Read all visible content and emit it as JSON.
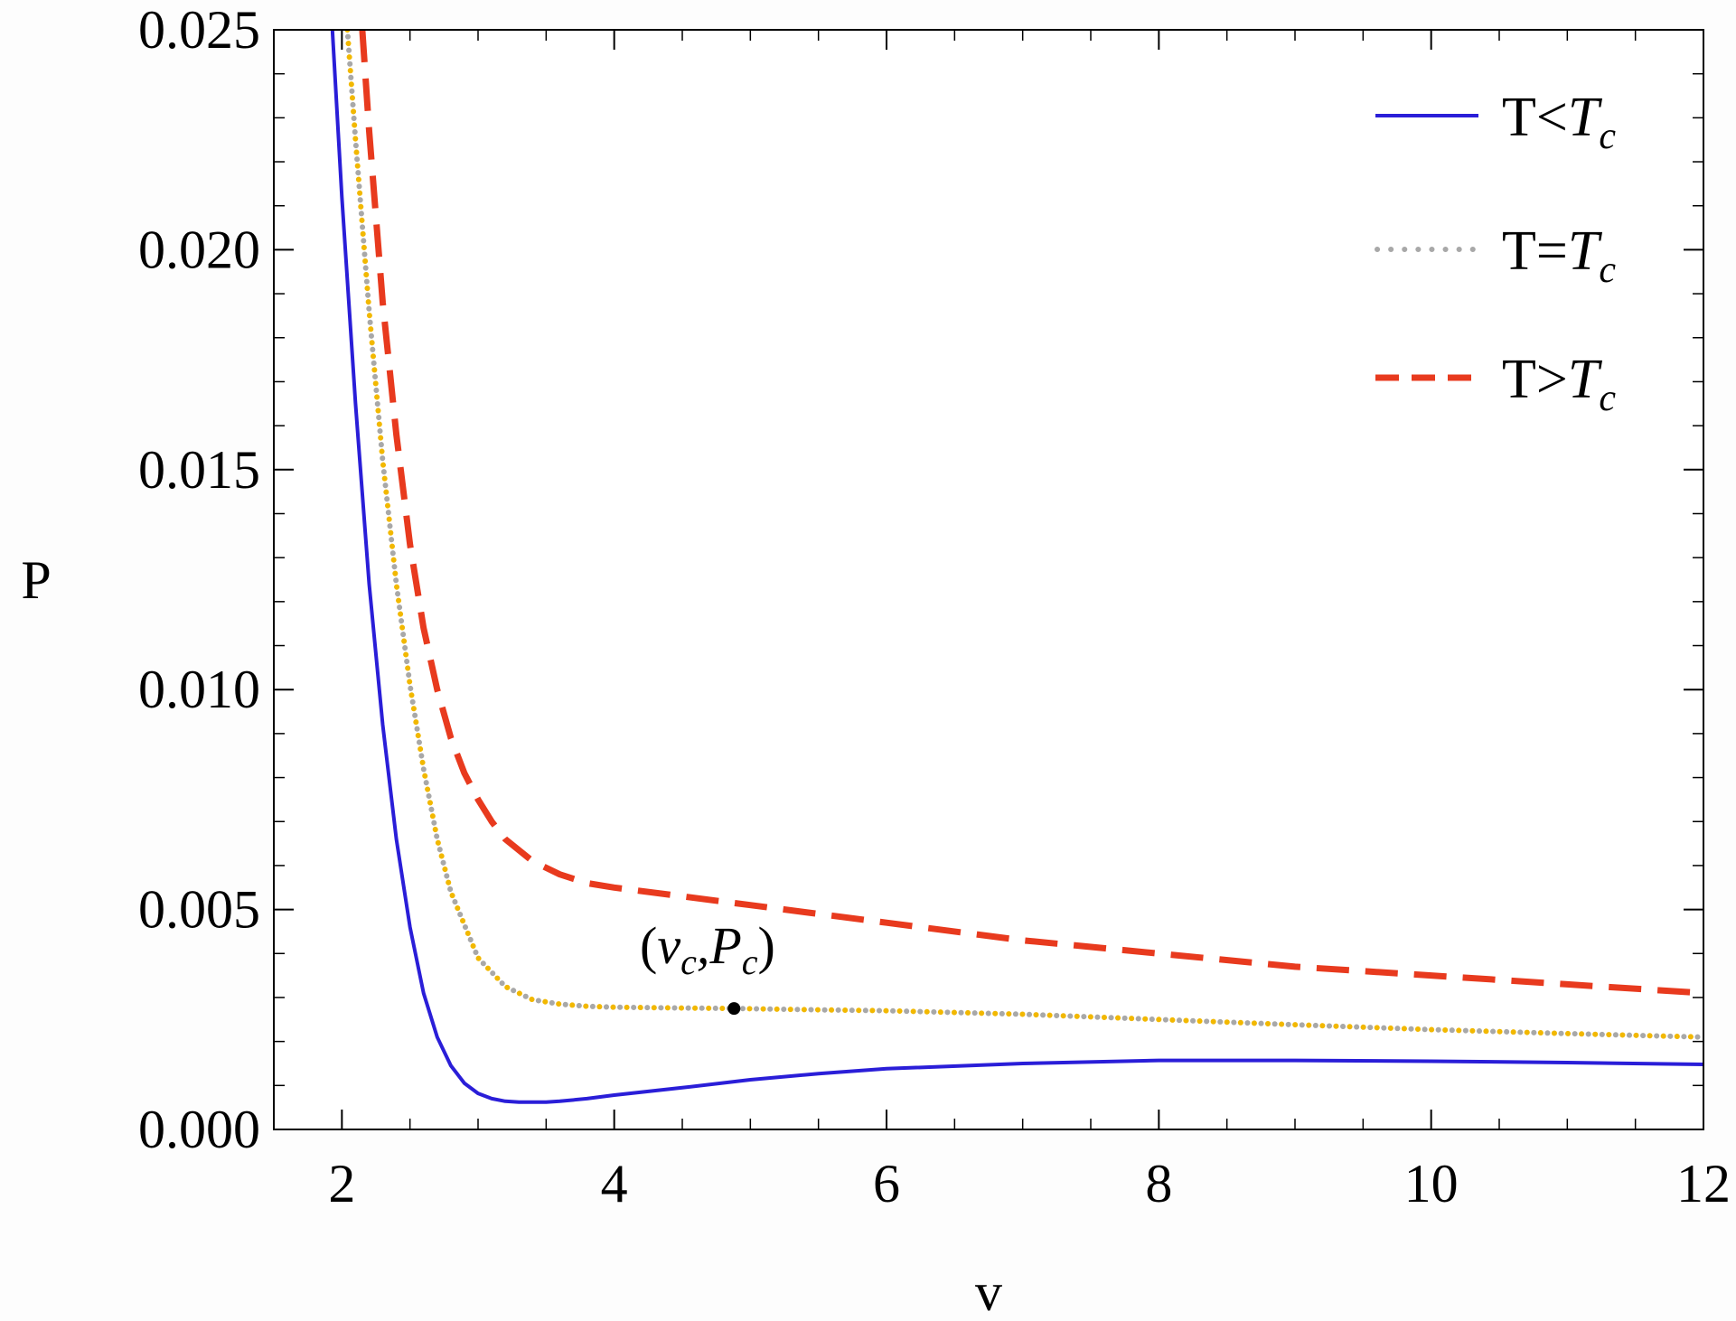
{
  "chart_data": {
    "type": "line",
    "title": "",
    "xlabel": "v",
    "ylabel": "P",
    "xlim": [
      1.5,
      12
    ],
    "ylim": [
      0,
      0.025
    ],
    "x_ticks": [
      2,
      4,
      6,
      8,
      10,
      12
    ],
    "x_tick_labels": [
      "2",
      "4",
      "6",
      "8",
      "10",
      "12"
    ],
    "y_ticks": [
      0,
      0.005,
      0.01,
      0.015,
      0.02,
      0.025
    ],
    "y_tick_labels": [
      "0.000",
      "0.005",
      "0.010",
      "0.015",
      "0.020",
      "0.025"
    ],
    "grid": false,
    "legend_position": "top-right",
    "annotation": {
      "label_base": "(v",
      "label_sub1": "c",
      "label_mid": ",P",
      "label_sub2": "c",
      "label_end": ")",
      "point": [
        4.88,
        0.00275
      ]
    },
    "series": [
      {
        "name": "T<Tc",
        "legend_base": "T<",
        "legend_italic": "T",
        "legend_sub": "c",
        "color": "#2a1ed8",
        "style": "solid",
        "x": [
          1.93,
          2.0,
          2.1,
          2.2,
          2.3,
          2.4,
          2.5,
          2.6,
          2.7,
          2.8,
          2.9,
          3.0,
          3.1,
          3.2,
          3.3,
          3.4,
          3.5,
          3.6,
          3.8,
          4.0,
          4.5,
          5.0,
          5.5,
          6.0,
          7.0,
          8.0,
          9.0,
          10.0,
          11.0,
          12.0
        ],
        "y": [
          0.025,
          0.0212,
          0.0165,
          0.0124,
          0.0092,
          0.0066,
          0.0046,
          0.0031,
          0.0021,
          0.00145,
          0.00105,
          0.00082,
          0.0007,
          0.00064,
          0.00062,
          0.00062,
          0.00062,
          0.00064,
          0.0007,
          0.00078,
          0.00095,
          0.00113,
          0.00127,
          0.00138,
          0.0015,
          0.00157,
          0.00157,
          0.00155,
          0.00152,
          0.00148
        ]
      },
      {
        "name": "T=Tc",
        "legend_base": "T=",
        "legend_italic": "T",
        "legend_sub": "c",
        "color": "#a8a8a8",
        "color2": "#f2b800",
        "style": "dotted",
        "x": [
          2.04,
          2.1,
          2.2,
          2.3,
          2.4,
          2.5,
          2.6,
          2.7,
          2.8,
          3.0,
          3.2,
          3.4,
          3.6,
          3.8,
          4.0,
          4.5,
          4.88,
          5.5,
          6.0,
          7.0,
          8.0,
          9.0,
          10.0,
          11.0,
          12.0
        ],
        "y": [
          0.025,
          0.0225,
          0.0186,
          0.0152,
          0.0124,
          0.0101,
          0.0082,
          0.0066,
          0.0054,
          0.0039,
          0.00325,
          0.00295,
          0.00285,
          0.0028,
          0.00278,
          0.00276,
          0.00275,
          0.00272,
          0.0027,
          0.00262,
          0.0025,
          0.00238,
          0.00227,
          0.00218,
          0.0021
        ]
      },
      {
        "name": "T>Tc",
        "legend_base": "T>",
        "legend_italic": "T",
        "legend_sub": "c",
        "color": "#e83a1e",
        "style": "dashed",
        "x": [
          2.15,
          2.2,
          2.3,
          2.4,
          2.5,
          2.6,
          2.7,
          2.8,
          2.9,
          3.0,
          3.1,
          3.2,
          3.4,
          3.6,
          3.8,
          4.0,
          4.5,
          5.0,
          6.0,
          7.0,
          8.0,
          9.0,
          10.0,
          11.0,
          12.0
        ],
        "y": [
          0.025,
          0.0227,
          0.0188,
          0.0158,
          0.0133,
          0.0114,
          0.01,
          0.0089,
          0.0081,
          0.0075,
          0.007,
          0.0066,
          0.0061,
          0.0058,
          0.0056,
          0.0055,
          0.0053,
          0.0051,
          0.0047,
          0.0043,
          0.004,
          0.0037,
          0.0035,
          0.0033,
          0.0031
        ]
      }
    ]
  }
}
